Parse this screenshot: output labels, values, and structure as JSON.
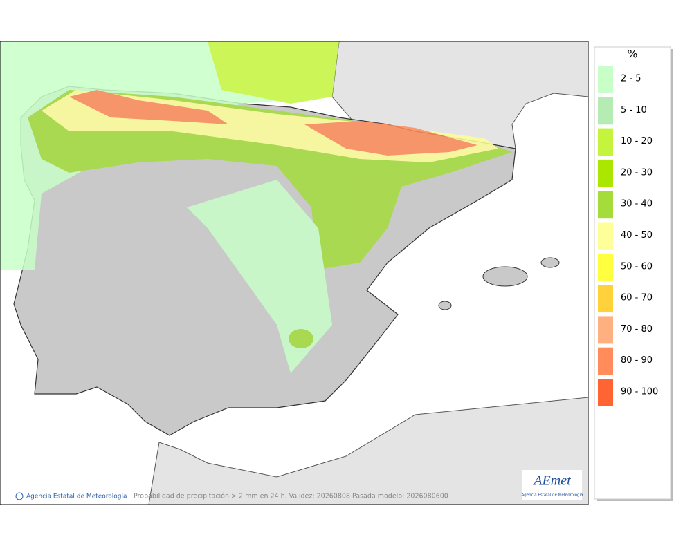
{
  "legend": {
    "title": "%",
    "items": [
      {
        "label": "2 - 5",
        "color": "#c8ffc8"
      },
      {
        "label": "5 - 10",
        "color": "#b4ecb4"
      },
      {
        "label": "10 - 20",
        "color": "#c4f53c"
      },
      {
        "label": "20 - 30",
        "color": "#aae600"
      },
      {
        "label": "30 - 40",
        "color": "#a4dc3c"
      },
      {
        "label": "40 - 50",
        "color": "#ffff99"
      },
      {
        "label": "50 - 60",
        "color": "#ffff40"
      },
      {
        "label": "60 - 70",
        "color": "#ffd23c"
      },
      {
        "label": "70 - 80",
        "color": "#ffb080"
      },
      {
        "label": "80 - 90",
        "color": "#ff8c5a"
      },
      {
        "label": "90 - 100",
        "color": "#ff6432"
      }
    ]
  },
  "footer": {
    "copyright": "Agencia Estatal de Meteorología",
    "caption": "Probabilidad de precipitación > 2 mm en 24 h. Validez: 20260808 Pasada modelo: 2026080600"
  },
  "logo": {
    "name": "AEmet",
    "subtitle": "Agencia Estatal de Meteorología"
  }
}
